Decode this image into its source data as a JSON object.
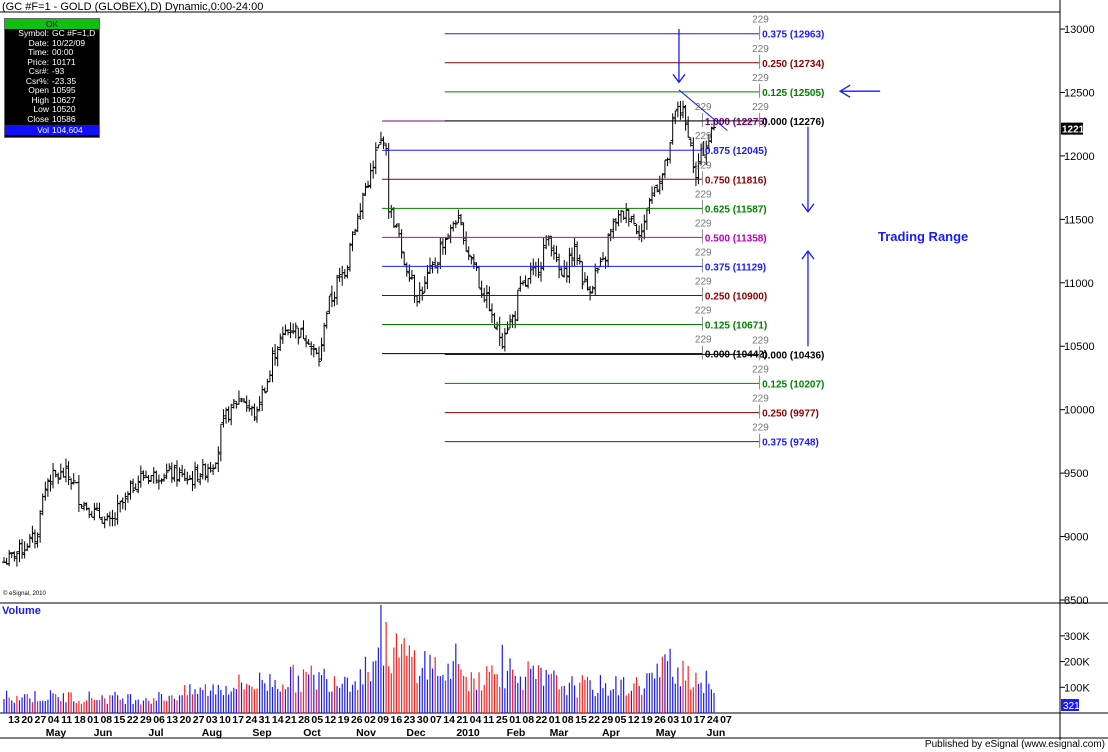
{
  "header": {
    "title": "(GC #F=1 - GOLD (GLOBEX),D) Dynamic,0:00-24:00"
  },
  "info_box": {
    "status": "OK",
    "rows": [
      {
        "k": "Symbol:",
        "v": "GC #F=1,D"
      },
      {
        "k": "Date:",
        "v": "10/22/09"
      },
      {
        "k": "Time:",
        "v": "00:00"
      },
      {
        "k": "Price:",
        "v": "10171"
      },
      {
        "k": "Csr#:",
        "v": "-93"
      },
      {
        "k": "Csr%:",
        "v": "-23.35"
      },
      {
        "k": "Open",
        "v": "10595"
      },
      {
        "k": "High",
        "v": "10627"
      },
      {
        "k": "Low",
        "v": "10520"
      },
      {
        "k": "Close",
        "v": "10586"
      }
    ],
    "vol_k": "Vol",
    "vol_v": "104,604"
  },
  "copyright": "© eSignal, 2010",
  "volume_title": "Volume",
  "footer": "Published by eSignal (www.esignal.com)",
  "annotation": "Trading Range",
  "colors": {
    "grid_blue": "#1a1aff",
    "dark_red": "#8b0000",
    "green": "#008000",
    "purple": "#800080",
    "volume_red": "#ff2020",
    "volume_blue": "#1a1aff"
  },
  "chart_data": {
    "type": "bar",
    "price_axis": {
      "ticks": [
        "13000",
        "12500",
        "12000",
        "11500",
        "11000",
        "10500",
        "10000",
        "9500",
        "9000",
        "8500"
      ],
      "ylim": [
        8500,
        13150
      ]
    },
    "volume_axis": {
      "ticks": [
        "300K",
        "200K",
        "100K"
      ],
      "ylim": [
        0,
        420000
      ],
      "current": "321"
    },
    "current_price": "12215",
    "day_ticks": [
      "13",
      "20",
      "27",
      "04",
      "11",
      "18",
      "01",
      "08",
      "15",
      "22",
      "29",
      "06",
      "13",
      "20",
      "27",
      "03",
      "10",
      "17",
      "24",
      "31",
      "14",
      "21",
      "28",
      "05",
      "12",
      "19",
      "26",
      "02",
      "09",
      "16",
      "23",
      "30",
      "07",
      "14",
      "21",
      "04",
      "11",
      "25",
      "01",
      "08",
      "22",
      "01",
      "08",
      "15",
      "22",
      "29",
      "05",
      "12",
      "19",
      "26",
      "03",
      "10",
      "17",
      "24",
      "07"
    ],
    "month_labels": [
      "May",
      "Jun",
      "Jul",
      "Aug",
      "Sep",
      "Oct",
      "Nov",
      "Dec",
      "2010",
      "Feb",
      "Mar",
      "Apr",
      "May",
      "Jun"
    ],
    "price_anchors": [
      {
        "date": "2009-05-12",
        "price": 8800
      },
      {
        "date": "2009-05-29",
        "price": 9000
      },
      {
        "date": "2009-06-04",
        "price": 9450
      },
      {
        "date": "2009-06-15",
        "price": 9500
      },
      {
        "date": "2009-06-24",
        "price": 9250
      },
      {
        "date": "2009-07-08",
        "price": 9100
      },
      {
        "date": "2009-07-24",
        "price": 9470
      },
      {
        "date": "2009-08-10",
        "price": 9500
      },
      {
        "date": "2009-08-21",
        "price": 9450
      },
      {
        "date": "2009-09-02",
        "price": 9580
      },
      {
        "date": "2009-09-09",
        "price": 9950
      },
      {
        "date": "2009-09-17",
        "price": 10100
      },
      {
        "date": "2009-09-25",
        "price": 9950
      },
      {
        "date": "2009-10-08",
        "price": 10550
      },
      {
        "date": "2009-10-14",
        "price": 10650
      },
      {
        "date": "2009-10-22",
        "price": 10586
      },
      {
        "date": "2009-10-29",
        "price": 10400
      },
      {
        "date": "2009-11-04",
        "price": 10850
      },
      {
        "date": "2009-11-12",
        "price": 11100
      },
      {
        "date": "2009-11-17",
        "price": 11400
      },
      {
        "date": "2009-11-26",
        "price": 11850
      },
      {
        "date": "2009-12-03",
        "price": 12150
      },
      {
        "date": "2009-12-07",
        "price": 11600
      },
      {
        "date": "2009-12-14",
        "price": 11200
      },
      {
        "date": "2009-12-22",
        "price": 10900
      },
      {
        "date": "2009-12-28",
        "price": 11050
      },
      {
        "date": "2010-01-06",
        "price": 11350
      },
      {
        "date": "2010-01-12",
        "price": 11500
      },
      {
        "date": "2010-01-20",
        "price": 11200
      },
      {
        "date": "2010-01-27",
        "price": 10900
      },
      {
        "date": "2010-02-05",
        "price": 10550
      },
      {
        "date": "2010-02-12",
        "price": 10750
      },
      {
        "date": "2010-02-16",
        "price": 10950
      },
      {
        "date": "2010-02-24",
        "price": 11100
      },
      {
        "date": "2010-03-03",
        "price": 11350
      },
      {
        "date": "2010-03-10",
        "price": 11050
      },
      {
        "date": "2010-03-17",
        "price": 11250
      },
      {
        "date": "2010-03-24",
        "price": 10950
      },
      {
        "date": "2010-04-01",
        "price": 11150
      },
      {
        "date": "2010-04-08",
        "price": 11500
      },
      {
        "date": "2010-04-15",
        "price": 11550
      },
      {
        "date": "2010-04-22",
        "price": 11400
      },
      {
        "date": "2010-04-29",
        "price": 11750
      },
      {
        "date": "2010-05-04",
        "price": 11850
      },
      {
        "date": "2010-05-12",
        "price": 12400
      },
      {
        "date": "2010-05-18",
        "price": 12200
      },
      {
        "date": "2010-05-21",
        "price": 11800
      },
      {
        "date": "2010-05-27",
        "price": 12100
      },
      {
        "date": "2010-06-01",
        "price": 12215
      }
    ],
    "volume_anchors": [
      {
        "date": "2009-05-12",
        "v": 70000
      },
      {
        "date": "2009-08-01",
        "v": 60000
      },
      {
        "date": "2009-09-10",
        "v": 110000
      },
      {
        "date": "2009-10-15",
        "v": 140000
      },
      {
        "date": "2009-11-20",
        "v": 150000
      },
      {
        "date": "2009-12-03",
        "v": 270000
      },
      {
        "date": "2010-01-15",
        "v": 140000
      },
      {
        "date": "2010-02-10",
        "v": 170000
      },
      {
        "date": "2010-03-15",
        "v": 110000
      },
      {
        "date": "2010-04-20",
        "v": 110000
      },
      {
        "date": "2010-05-10",
        "v": 200000
      },
      {
        "date": "2010-06-01",
        "v": 100000
      }
    ],
    "volume_peaks": [
      {
        "date": "2009-12-02",
        "v": 420000
      },
      {
        "date": "2010-01-12",
        "v": 270000
      },
      {
        "date": "2010-02-05",
        "v": 265000
      },
      {
        "date": "2010-05-07",
        "v": 250000
      }
    ],
    "fib_groups": [
      {
        "name": "retracement",
        "x_start": "2009-12-03",
        "x_end": "2010-05-26",
        "label_date": "2010-05-26",
        "levels": [
          {
            "label": "1.000 (12275)",
            "ratio": "1.000",
            "value": 12275,
            "color": "#800080"
          },
          {
            "label": "0.875 (12045)",
            "ratio": "0.875",
            "value": 12045,
            "color": "#1a1aff"
          },
          {
            "label": "0.750 (11816)",
            "ratio": "0.750",
            "value": 11816,
            "color": "#8b0000"
          },
          {
            "label": "0.625 (11587)",
            "ratio": "0.625",
            "value": 11587,
            "color": "#008000"
          },
          {
            "label": "0.500 (11358)",
            "ratio": "0.500",
            "value": 11358,
            "color": "#c000c0"
          },
          {
            "label": "0.375 (11129)",
            "ratio": "0.375",
            "value": 11129,
            "color": "#1a1aff"
          },
          {
            "label": "0.250 (10900)",
            "ratio": "0.250",
            "value": 10900,
            "color": "#8b0000"
          },
          {
            "label": "0.125 (10671)",
            "ratio": "0.125",
            "value": 10671,
            "color": "#008000"
          },
          {
            "label": "0.000 (10442)",
            "ratio": "0.000",
            "value": 10442,
            "color": "#000000"
          }
        ]
      },
      {
        "name": "extension",
        "x_start": "2010-01-06",
        "x_end": "2010-06-26",
        "label_date": "2010-06-26",
        "levels": [
          {
            "label": "0.375 (12963)",
            "ratio": "0.375",
            "value": 12963,
            "color": "#1a1aff"
          },
          {
            "label": "0.250 (12734)",
            "ratio": "0.250",
            "value": 12734,
            "color": "#8b0000"
          },
          {
            "label": "0.125 (12505)",
            "ratio": "0.125",
            "value": 12505,
            "color": "#008000"
          },
          {
            "label": "0.000 (12276)",
            "ratio": "0.000",
            "value": 12276,
            "color": "#000000"
          },
          {
            "label": "0.000 (10436)",
            "ratio": "0.000",
            "value": 10436,
            "color": "#000000"
          },
          {
            "label": "0.125 (10207)",
            "ratio": "0.125",
            "value": 10207,
            "color": "#008000"
          },
          {
            "label": "0.250 (9977)",
            "ratio": "0.250",
            "value": 9977,
            "color": "#8b0000"
          },
          {
            "label": "0.375 (9748)",
            "ratio": "0.375",
            "value": 9748,
            "color": "#1a1aff"
          }
        ]
      }
    ],
    "fib_tag": "229",
    "trendline": [
      {
        "date": "2010-05-13",
        "price": 12520
      },
      {
        "date": "2010-06-05",
        "price": 12200
      }
    ],
    "arrows": [
      {
        "name": "top-arrow",
        "date": "2010-05-13",
        "from": 13000,
        "to": 12580,
        "dir": "down"
      },
      {
        "name": "right-arrow",
        "date": "2010-06-26",
        "price": 12510,
        "dir": "left"
      },
      {
        "name": "range-arrow-down",
        "date": "2010-06-14",
        "from": 12230,
        "to": 11560,
        "dir": "down"
      },
      {
        "name": "range-arrow-up",
        "date": "2010-06-14",
        "from": 10500,
        "to": 11250,
        "dir": "up"
      }
    ]
  }
}
